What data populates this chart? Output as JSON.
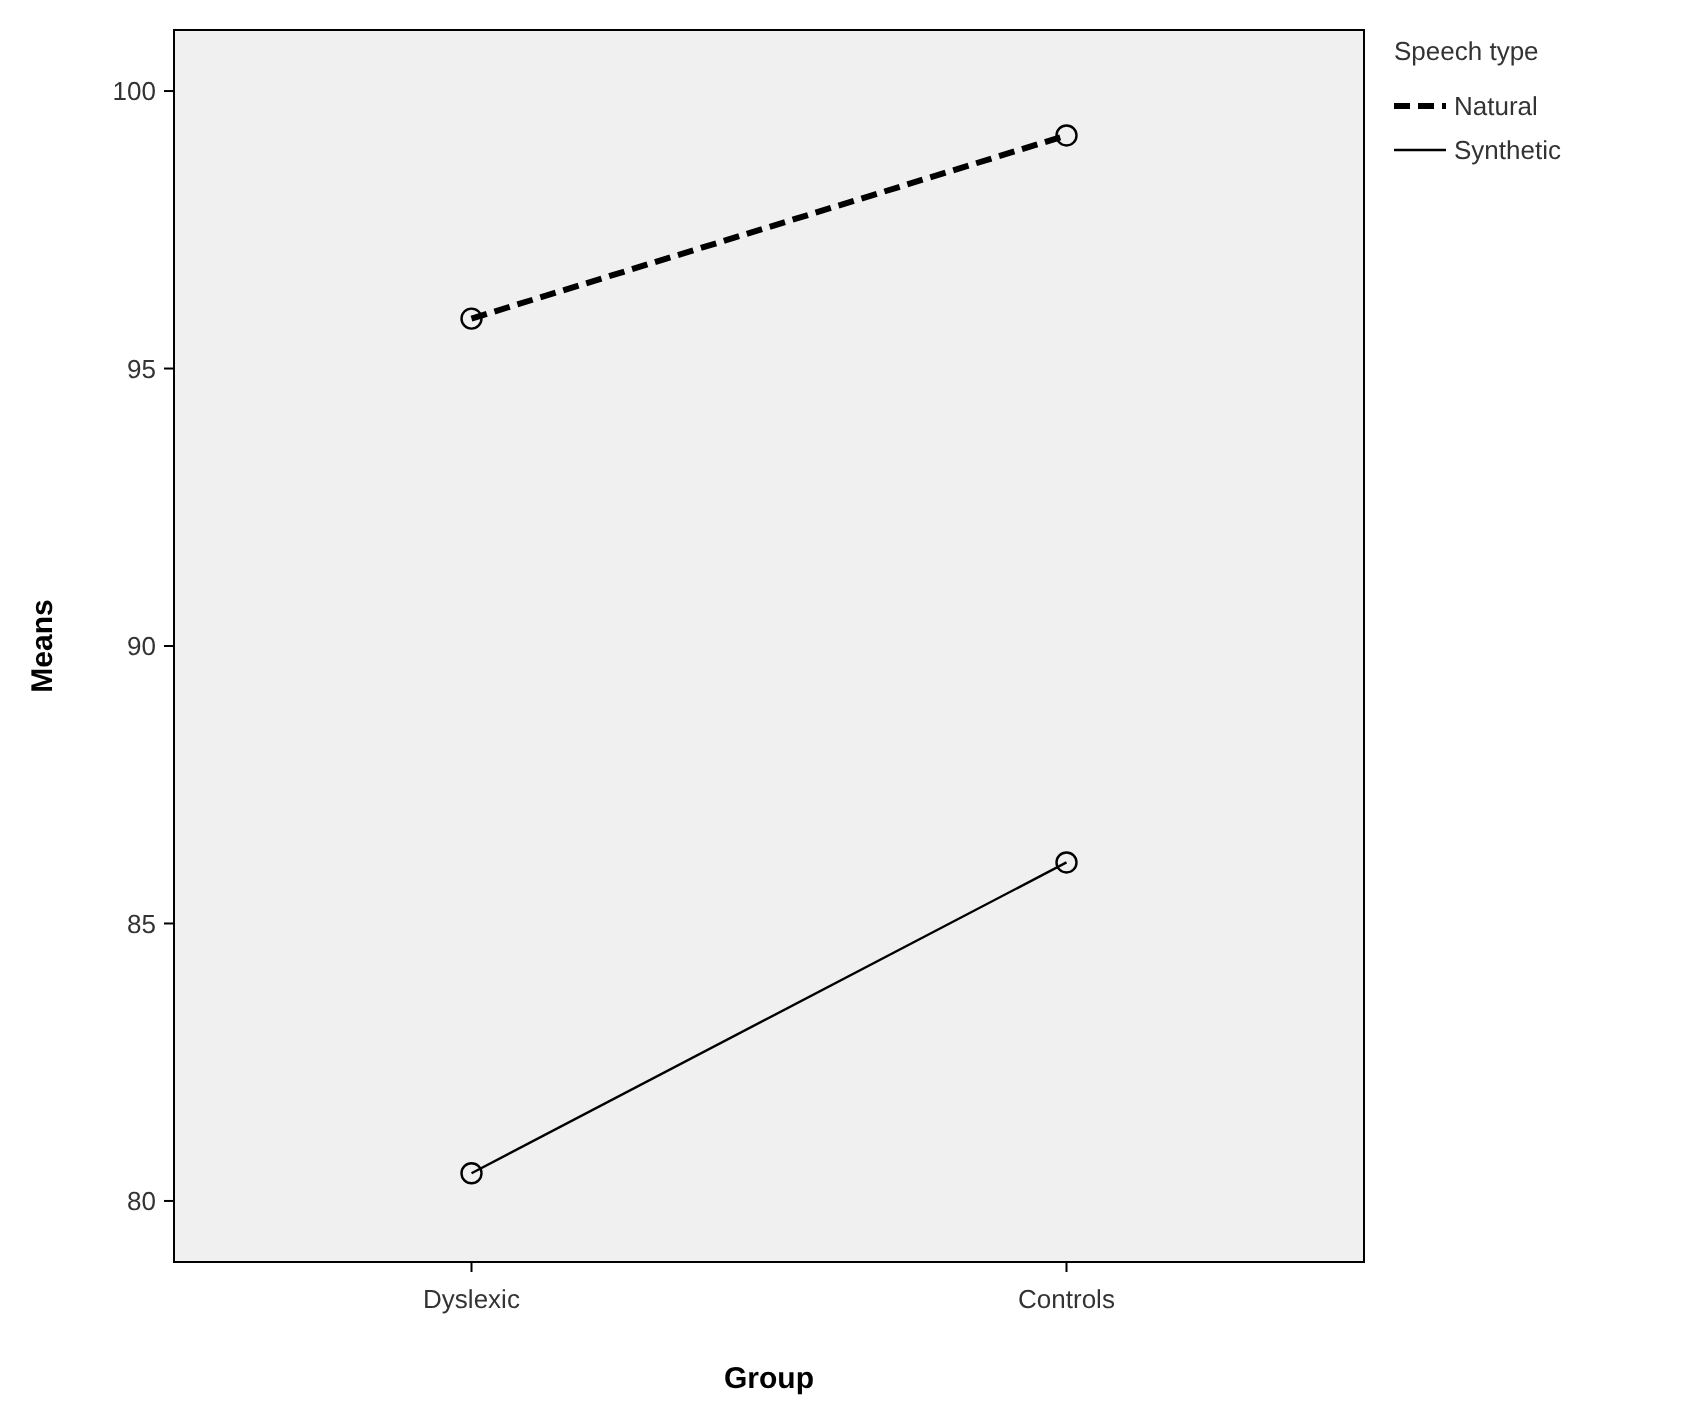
{
  "chart_data": {
    "type": "line",
    "xlabel": "Group",
    "ylabel": "Means",
    "legend_title": "Speech type",
    "categories": [
      "Dyslexic",
      "Controls"
    ],
    "series": [
      {
        "name": "Natural",
        "color": "#000000",
        "values": [
          95.9,
          99.2
        ],
        "line_style": "dashed"
      },
      {
        "name": "Synthetic",
        "color": "#000000",
        "values": [
          80.5,
          86.1
        ],
        "line_style": "solid"
      }
    ],
    "ylim": [
      78.9,
      101.1
    ],
    "yticks": [
      80,
      85,
      90,
      95,
      100
    ],
    "marker": "circle",
    "legend": "top right",
    "grid": false
  }
}
